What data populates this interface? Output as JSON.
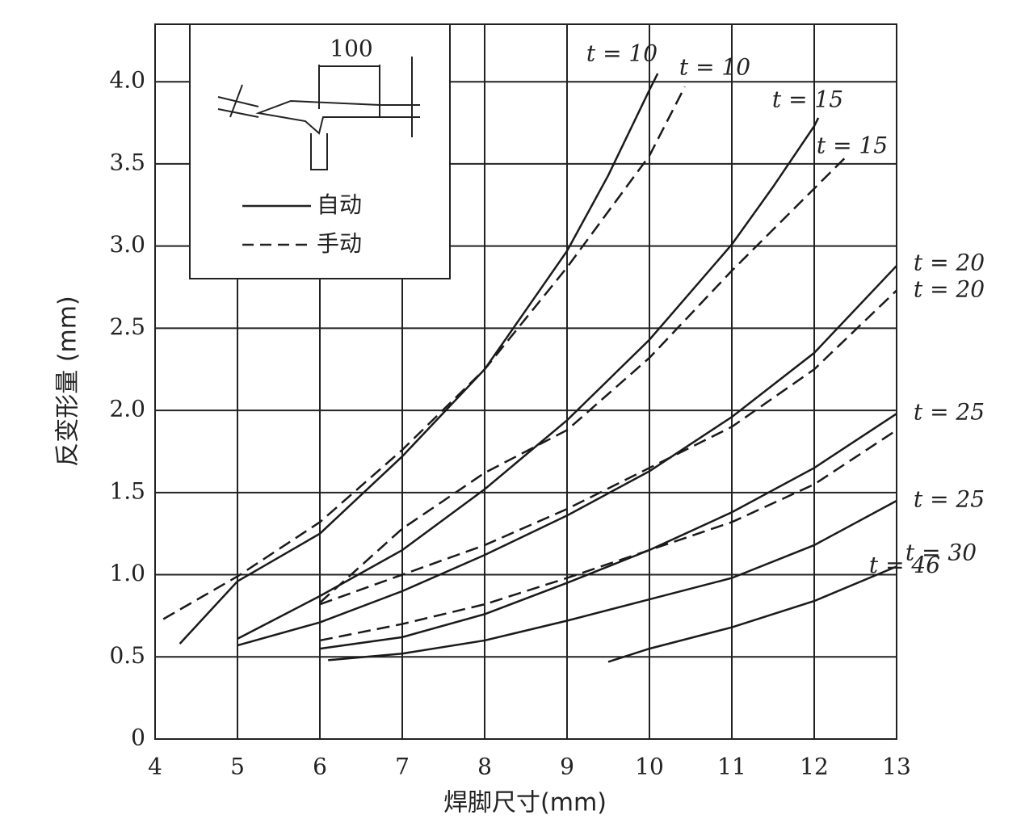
{
  "chart_data": {
    "type": "line",
    "xlabel": "焊脚尺寸(mm)",
    "ylabel": "反变形量 (mm)",
    "xlim": [
      4,
      13
    ],
    "ylim": [
      0,
      4.35
    ],
    "xticks": [
      4,
      5,
      6,
      7,
      8,
      9,
      10,
      11,
      12,
      13
    ],
    "yticks": [
      0,
      0.5,
      {
        "value": 1,
        "label": "1.0"
      },
      1.5,
      {
        "value": 2,
        "label": "2.0"
      },
      2.5,
      {
        "value": 3,
        "label": "3.0"
      },
      3.5,
      {
        "value": 4,
        "label": "4.0"
      }
    ],
    "grid": true,
    "legend": [
      {
        "label": "自动",
        "dashed": false
      },
      {
        "label": "手动",
        "dashed": true
      }
    ],
    "inset_label": "100",
    "series": [
      {
        "name": "t = 10",
        "color": "#1a1a1a",
        "dashed": false,
        "x": [
          4.3,
          5,
          6,
          7,
          8,
          9,
          9.5,
          10,
          10.1
        ],
        "values": [
          0.58,
          0.96,
          1.25,
          1.72,
          2.25,
          2.97,
          3.43,
          3.95,
          4.05
        ]
      },
      {
        "name": "t = 10",
        "color": "#1a1a1a",
        "dashed": true,
        "x": [
          4.1,
          5,
          6,
          7,
          8,
          9,
          10,
          10.43
        ],
        "values": [
          0.73,
          0.99,
          1.32,
          1.76,
          2.25,
          2.87,
          3.55,
          3.97
        ]
      },
      {
        "name": "t = 15",
        "color": "#1a1a1a",
        "dashed": false,
        "x": [
          5,
          6,
          7,
          8,
          9,
          10,
          11,
          11.5,
          12,
          12.05
        ],
        "values": [
          0.61,
          0.87,
          1.15,
          1.52,
          1.94,
          2.43,
          3.01,
          3.36,
          3.73,
          3.78
        ]
      },
      {
        "name": "t = 15",
        "color": "#1a1a1a",
        "dashed": true,
        "x": [
          6,
          7,
          8,
          9,
          10,
          11,
          12,
          12.4
        ],
        "values": [
          0.83,
          1.28,
          1.62,
          1.88,
          2.32,
          2.85,
          3.35,
          3.55
        ]
      },
      {
        "name": "t = 20",
        "color": "#1a1a1a",
        "dashed": false,
        "x": [
          5,
          6,
          7,
          8,
          9,
          10,
          11,
          12,
          13
        ],
        "values": [
          0.57,
          0.71,
          0.9,
          1.12,
          1.36,
          1.63,
          1.96,
          2.35,
          2.88
        ]
      },
      {
        "name": "t = 20",
        "color": "#1a1a1a",
        "dashed": true,
        "x": [
          6,
          7,
          8,
          9,
          10,
          11,
          12,
          13
        ],
        "values": [
          0.82,
          1.0,
          1.18,
          1.4,
          1.65,
          1.9,
          2.25,
          2.73
        ]
      },
      {
        "name": "t = 25",
        "color": "#1a1a1a",
        "dashed": false,
        "x": [
          6,
          7,
          8,
          9,
          10,
          11,
          12,
          13
        ],
        "values": [
          0.55,
          0.62,
          0.76,
          0.95,
          1.15,
          1.38,
          1.65,
          1.98
        ]
      },
      {
        "name": "t = 25",
        "color": "#1a1a1a",
        "dashed": true,
        "x": [
          6,
          7,
          8,
          9,
          10,
          11,
          12,
          13
        ],
        "values": [
          0.6,
          0.7,
          0.82,
          0.98,
          1.15,
          1.32,
          1.55,
          1.88
        ]
      },
      {
        "name": "t = 30",
        "color": "#1a1a1a",
        "dashed": false,
        "x": [
          6.1,
          7,
          8,
          9,
          10,
          11,
          12,
          13
        ],
        "values": [
          0.48,
          0.52,
          0.6,
          0.72,
          0.85,
          0.98,
          1.18,
          1.45
        ]
      },
      {
        "name": "t = 46",
        "color": "#1a1a1a",
        "dashed": false,
        "x": [
          9.5,
          10,
          11,
          12,
          13
        ],
        "values": [
          0.47,
          0.55,
          0.68,
          0.84,
          1.05
        ]
      }
    ]
  }
}
